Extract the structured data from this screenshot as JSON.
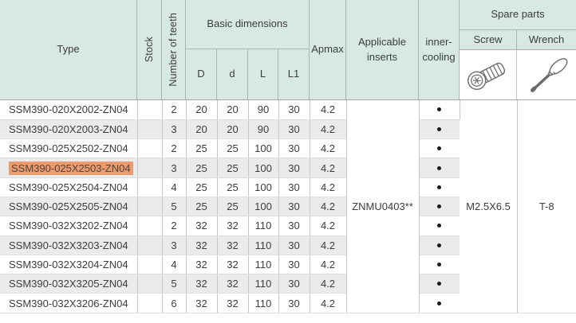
{
  "table": {
    "header": {
      "type_label": "Type",
      "stock_label": "Stock",
      "teeth_label": "Number of teeth",
      "basic_dimensions_label": "Basic dimensions",
      "dim_D": "D",
      "dim_d": "d",
      "dim_L": "L",
      "dim_L1": "L1",
      "apmax_label": "Apmax",
      "inserts_line1": "Applicable",
      "inserts_line2": "inserts",
      "cooling_line1": "inner-",
      "cooling_line2": "cooling",
      "spare_parts_label": "Spare parts",
      "screw_label": "Screw",
      "wrench_label": "Wrench",
      "screw_icon": "screw-icon",
      "wrench_icon": "wrench-icon"
    },
    "rows": [
      {
        "type": "SSM390-020X2002-ZN04",
        "stock": "",
        "teeth": "2",
        "D": "20",
        "d": "20",
        "L": "90",
        "L1": "30",
        "apmax": "4.2",
        "cooling": true,
        "highlighted": false
      },
      {
        "type": "SSM390-020X2003-ZN04",
        "stock": "",
        "teeth": "3",
        "D": "20",
        "d": "20",
        "L": "90",
        "L1": "30",
        "apmax": "4.2",
        "cooling": true,
        "highlighted": false
      },
      {
        "type": "SSM390-025X2502-ZN04",
        "stock": "",
        "teeth": "2",
        "D": "25",
        "d": "25",
        "L": "100",
        "L1": "30",
        "apmax": "4.2",
        "cooling": true,
        "highlighted": false
      },
      {
        "type": "SSM390-025X2503-ZN04",
        "stock": "",
        "teeth": "3",
        "D": "25",
        "d": "25",
        "L": "100",
        "L1": "30",
        "apmax": "4.2",
        "cooling": true,
        "highlighted": true
      },
      {
        "type": "SSM390-025X2504-ZN04",
        "stock": "",
        "teeth": "4",
        "D": "25",
        "d": "25",
        "L": "100",
        "L1": "30",
        "apmax": "4.2",
        "cooling": true,
        "highlighted": false
      },
      {
        "type": "SSM390-025X2505-ZN04",
        "stock": "",
        "teeth": "5",
        "D": "25",
        "d": "25",
        "L": "100",
        "L1": "30",
        "apmax": "4.2",
        "cooling": true,
        "highlighted": false
      },
      {
        "type": "SSM390-032X3202-ZN04",
        "stock": "",
        "teeth": "2",
        "D": "32",
        "d": "32",
        "L": "110",
        "L1": "30",
        "apmax": "4.2",
        "cooling": true,
        "highlighted": false
      },
      {
        "type": "SSM390-032X3203-ZN04",
        "stock": "",
        "teeth": "3",
        "D": "32",
        "d": "32",
        "L": "110",
        "L1": "30",
        "apmax": "4.2",
        "cooling": true,
        "highlighted": false
      },
      {
        "type": "SSM390-032X3204-ZN04",
        "stock": "",
        "teeth": "4",
        "D": "32",
        "d": "32",
        "L": "110",
        "L1": "30",
        "apmax": "4.2",
        "cooling": true,
        "highlighted": false
      },
      {
        "type": "SSM390-032X3205-ZN04",
        "stock": "",
        "teeth": "5",
        "D": "32",
        "d": "32",
        "L": "110",
        "L1": "30",
        "apmax": "4.2",
        "cooling": true,
        "highlighted": false
      },
      {
        "type": "SSM390-032X3206-ZN04",
        "stock": "",
        "teeth": "6",
        "D": "32",
        "d": "32",
        "L": "110",
        "L1": "30",
        "apmax": "4.2",
        "cooling": true,
        "highlighted": false
      }
    ],
    "span_cells": {
      "applicable_inserts": "ZNMU0403**",
      "screw": "M2.5X6.5",
      "wrench": "T-8"
    }
  },
  "colors": {
    "header_bg": "#d8e9e4",
    "row_stripe": "#ebebeb",
    "highlight_bg": "#ec9b6f",
    "text": "#3c3c3c"
  }
}
